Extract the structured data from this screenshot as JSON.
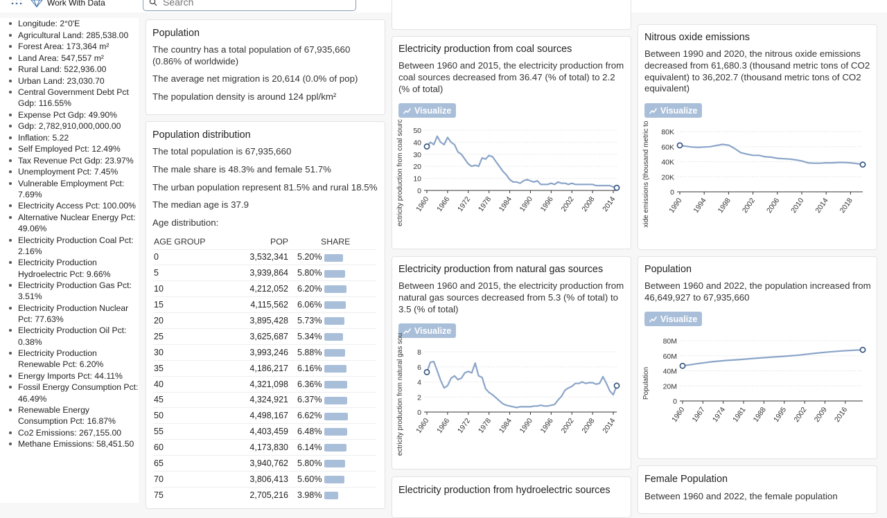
{
  "header": {
    "brand": "Work With Data",
    "search_placeholder": "Search"
  },
  "sidebar": {
    "items": [
      "Longitude: 2°0'E",
      "Agricultural Land: 285,538.00",
      "Forest Area: 173,364 m²",
      "Land Area: 547,557 m²",
      "Rural Land: 522,936.00",
      "Urban Land: 23,030.70",
      "Central Government Debt Pct Gdp: 116.55%",
      "Expense Pct Gdp: 49.90%",
      "Gdp: 2,782,910,000,000.00",
      "Inflation: 5.22",
      "Self Employed Pct: 12.49%",
      "Tax Revenue Pct Gdp: 23.97%",
      "Unemployment Pct: 7.45%",
      "Vulnerable Employment Pct: 7.69%",
      "Electricity Access Pct: 100.00%",
      "Alternative Nuclear Energy Pct: 49.06%",
      "Electricity Production Coal Pct: 2.16%",
      "Electricity Production Hydroelectric Pct: 9.66%",
      "Electricity Production Gas Pct: 3.51%",
      "Electricity Production Nuclear Pct: 77.63%",
      "Electricity Production Oil Pct: 0.38%",
      "Electricity Production Renewable Pct: 6.20%",
      "Energy Imports Pct: 44.11%",
      "Fossil Energy Consumption Pct: 46.49%",
      "Renewable Energy Consumption Pct: 16.87%",
      "Co2 Emissions: 267,155.00",
      "Methane Emissions: 58,451.50"
    ]
  },
  "population_card": {
    "title": "Population",
    "lines": [
      "The country has a total population of 67,935,660 (0.86% of worldwide)",
      "The average net migration is 20,614 (0.0% of pop)",
      "The population density is around 124 ppl/km²"
    ]
  },
  "distribution_card": {
    "title": "Population distribution",
    "lines": [
      "The total population is 67,935,660",
      "The male share is 48.3% and female 51.7%",
      "The urban population represent 81.5% and rural 18.5%",
      "The median age is 37.9",
      "Age distribution:"
    ],
    "table": {
      "headers": [
        "AGE GROUP",
        "POP",
        "SHARE"
      ],
      "rows": [
        {
          "group": "0",
          "pop": "3,532,341",
          "share": "5.20%",
          "share_value": 5.2
        },
        {
          "group": "5",
          "pop": "3,939,864",
          "share": "5.80%",
          "share_value": 5.8
        },
        {
          "group": "10",
          "pop": "4,212,052",
          "share": "6.20%",
          "share_value": 6.2
        },
        {
          "group": "15",
          "pop": "4,115,562",
          "share": "6.06%",
          "share_value": 6.06
        },
        {
          "group": "20",
          "pop": "3,895,428",
          "share": "5.73%",
          "share_value": 5.73
        },
        {
          "group": "25",
          "pop": "3,625,687",
          "share": "5.34%",
          "share_value": 5.34
        },
        {
          "group": "30",
          "pop": "3,993,246",
          "share": "5.88%",
          "share_value": 5.88
        },
        {
          "group": "35",
          "pop": "4,186,217",
          "share": "6.16%",
          "share_value": 6.16
        },
        {
          "group": "40",
          "pop": "4,321,098",
          "share": "6.36%",
          "share_value": 6.36
        },
        {
          "group": "45",
          "pop": "4,324,921",
          "share": "6.37%",
          "share_value": 6.37
        },
        {
          "group": "50",
          "pop": "4,498,167",
          "share": "6.62%",
          "share_value": 6.62
        },
        {
          "group": "55",
          "pop": "4,403,459",
          "share": "6.48%",
          "share_value": 6.48
        },
        {
          "group": "60",
          "pop": "4,173,830",
          "share": "6.14%",
          "share_value": 6.14
        },
        {
          "group": "65",
          "pop": "3,940,762",
          "share": "5.80%",
          "share_value": 5.8
        },
        {
          "group": "70",
          "pop": "3,806,413",
          "share": "5.60%",
          "share_value": 5.6
        },
        {
          "group": "75",
          "pop": "2,705,216",
          "share": "3.98%",
          "share_value": 3.98
        }
      ]
    }
  },
  "visualize_label": "Visualize",
  "colors": {
    "line": "#8aa4c8",
    "button": "#a9bfd9",
    "marker_stroke": "#2f4f7a"
  },
  "chart_data": [
    {
      "id": "coal",
      "type": "line",
      "title": "Electricity production from coal sources",
      "description": "Between 1960 and 2015, the electricity production from coal sources decreased from 36.47 (% of total) to 2.2 (% of total)",
      "ylabel": "ectricity production from coal sourc",
      "xlim": [
        1960,
        2015
      ],
      "ylim": [
        0,
        50
      ],
      "yticks": [
        0,
        10,
        20,
        30,
        40,
        50
      ],
      "ytick_labels": [
        "0",
        "10",
        "20",
        "30",
        "40",
        "50"
      ],
      "xticks": [
        1960,
        1966,
        1972,
        1978,
        1984,
        1990,
        1996,
        2002,
        2008,
        2014
      ],
      "x": [
        1960,
        1961,
        1962,
        1963,
        1964,
        1965,
        1966,
        1967,
        1968,
        1969,
        1970,
        1971,
        1972,
        1973,
        1974,
        1975,
        1976,
        1977,
        1978,
        1979,
        1980,
        1981,
        1982,
        1983,
        1984,
        1985,
        1986,
        1987,
        1988,
        1989,
        1990,
        1991,
        1992,
        1993,
        1994,
        1995,
        1996,
        1997,
        1998,
        1999,
        2000,
        2001,
        2002,
        2003,
        2004,
        2005,
        2006,
        2007,
        2008,
        2009,
        2010,
        2011,
        2012,
        2013,
        2014,
        2015
      ],
      "y": [
        36.47,
        40,
        38,
        45,
        40,
        38,
        44,
        40,
        38,
        32,
        30,
        26,
        22,
        20,
        21,
        20,
        27,
        26,
        29,
        28,
        24,
        20,
        16,
        13,
        9,
        7,
        7,
        6,
        8,
        9,
        8,
        7,
        8,
        5,
        5,
        5,
        6,
        5,
        7,
        6,
        6,
        5,
        6,
        5,
        5,
        5,
        5,
        5,
        5,
        4,
        4,
        4,
        4,
        4,
        3,
        2.2
      ]
    },
    {
      "id": "gas",
      "type": "line",
      "title": "Electricity production from natural gas sources",
      "description": "Between 1960 and 2015, the electricity production from natural gas sources decreased from 5.3 (% of total) to 3.5 (% of total)",
      "ylabel": "ectricity production from natural gas sou",
      "xlim": [
        1960,
        2015
      ],
      "ylim": [
        0,
        8
      ],
      "yticks": [
        0,
        2,
        4,
        6,
        8
      ],
      "ytick_labels": [
        "0",
        "2",
        "4",
        "6",
        "8"
      ],
      "xticks": [
        1960,
        1966,
        1972,
        1978,
        1984,
        1990,
        1996,
        2002,
        2008,
        2014
      ],
      "x": [
        1960,
        1961,
        1962,
        1963,
        1964,
        1965,
        1966,
        1967,
        1968,
        1969,
        1970,
        1971,
        1972,
        1973,
        1974,
        1975,
        1976,
        1977,
        1978,
        1979,
        1980,
        1981,
        1982,
        1983,
        1984,
        1985,
        1986,
        1987,
        1988,
        1989,
        1990,
        1991,
        1992,
        1993,
        1994,
        1995,
        1996,
        1997,
        1998,
        1999,
        2000,
        2001,
        2002,
        2003,
        2004,
        2005,
        2006,
        2007,
        2008,
        2009,
        2010,
        2011,
        2012,
        2013,
        2014,
        2015
      ],
      "y": [
        5.3,
        6.6,
        6.7,
        5.5,
        4.2,
        3.2,
        3.5,
        4.5,
        4.8,
        4.3,
        4.5,
        5.2,
        5.4,
        5.2,
        6.5,
        4.8,
        4.6,
        3.1,
        2.6,
        2.3,
        1.9,
        1.5,
        1.1,
        0.9,
        0.8,
        0.7,
        0.6,
        0.7,
        0.7,
        0.7,
        0.7,
        0.8,
        0.8,
        0.9,
        0.8,
        0.8,
        0.9,
        1.0,
        1.6,
        2.1,
        2.9,
        3.2,
        3.4,
        3.8,
        3.8,
        4.0,
        3.8,
        3.9,
        3.9,
        3.7,
        3.8,
        4.7,
        3.8,
        2.8,
        2.3,
        3.5
      ]
    },
    {
      "id": "n2o",
      "type": "line",
      "title": "Nitrous oxide emissions",
      "description": "Between 1990 and 2020, the nitrous oxide emissions decreased from 61,680.3 (thousand metric tons of CO2 equivalent) to 36,202.7 (thousand metric tons of CO2 equivalent)",
      "ylabel": "xide emissions (thousand metric to",
      "xlim": [
        1990,
        2020
      ],
      "ylim": [
        0,
        80000
      ],
      "yticks": [
        0,
        20000,
        40000,
        60000,
        80000
      ],
      "ytick_labels": [
        "0",
        "20K",
        "40K",
        "60K",
        "80K"
      ],
      "xticks": [
        1990,
        1994,
        1998,
        2002,
        2006,
        2010,
        2014,
        2018
      ],
      "x": [
        1990,
        1991,
        1992,
        1993,
        1994,
        1995,
        1996,
        1997,
        1998,
        1999,
        2000,
        2001,
        2002,
        2003,
        2004,
        2005,
        2006,
        2007,
        2008,
        2009,
        2010,
        2011,
        2012,
        2013,
        2014,
        2015,
        2016,
        2017,
        2018,
        2019,
        2020
      ],
      "y": [
        61680.3,
        60500,
        59500,
        59000,
        59500,
        60000,
        61500,
        63000,
        62000,
        57500,
        52000,
        50000,
        48500,
        48500,
        46500,
        46000,
        44500,
        44000,
        43500,
        42500,
        41000,
        38500,
        38000,
        38000,
        38500,
        38500,
        39000,
        39000,
        38500,
        37500,
        36202.7
      ]
    },
    {
      "id": "population",
      "type": "line",
      "title": "Population",
      "description": "Between 1960 and 2022, the population increased from 46,649,927 to 67,935,660",
      "ylabel": "Population",
      "xlim": [
        1960,
        2022
      ],
      "ylim": [
        0,
        80000000
      ],
      "yticks": [
        0,
        20000000,
        40000000,
        60000000,
        80000000
      ],
      "ytick_labels": [
        "0",
        "20M",
        "40M",
        "60M",
        "80M"
      ],
      "xticks": [
        1960,
        1967,
        1974,
        1981,
        1988,
        1995,
        2002,
        2009,
        2016
      ],
      "x": [
        1960,
        1965,
        1970,
        1975,
        1980,
        1985,
        1990,
        1995,
        2000,
        2005,
        2010,
        2015,
        2020,
        2022
      ],
      "y": [
        46649927,
        49500000,
        52000000,
        53800000,
        55100000,
        56600000,
        58000000,
        59300000,
        60900000,
        63100000,
        65000000,
        66500000,
        67600000,
        67935660
      ]
    }
  ],
  "extra_cards": {
    "hydro_title": "Electricity production from hydroelectric sources",
    "female_title": "Female Population",
    "female_text": "Between 1960 and 2022, the female population"
  }
}
